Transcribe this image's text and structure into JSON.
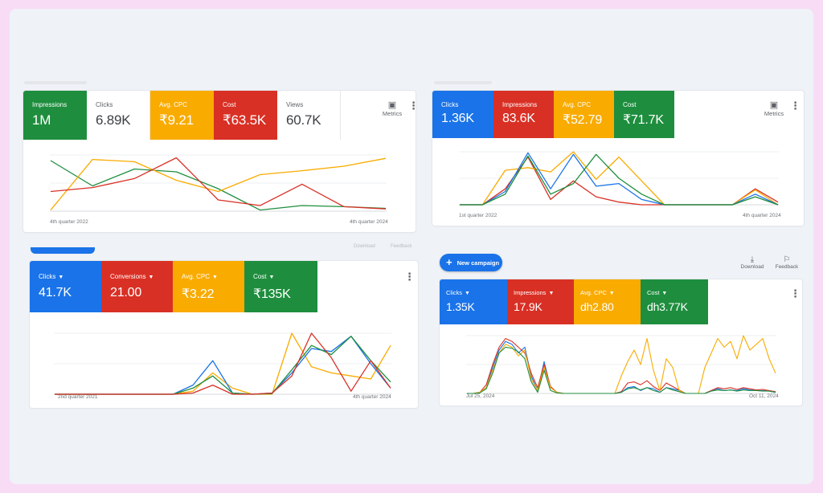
{
  "colors": {
    "blue": "#1a73e8",
    "red": "#d93025",
    "yellow": "#f9ab00",
    "green": "#1e8e3e",
    "frame": "#eff2f7",
    "outer": "#f8dcf6"
  },
  "top_bar": {
    "new_campaign_label": "New campaign",
    "new_campaign_icon": "plus-icon",
    "download_label": "Download",
    "download_icon": "download-icon",
    "feedback_label": "Feedback",
    "feedback_icon": "feedback-icon",
    "faded_download": "Download",
    "faded_feedback": "Feedback"
  },
  "cards": [
    {
      "name": "card-top-left",
      "tiles": [
        {
          "label": "Impressions",
          "value": "1M",
          "color": "green",
          "dropdown": false
        },
        {
          "label": "Clicks",
          "value": "6.89K",
          "color": "white",
          "dropdown": false
        },
        {
          "label": "Avg. CPC",
          "value": "₹9.21",
          "color": "yellow",
          "dropdown": false
        },
        {
          "label": "Cost",
          "value": "₹63.5K",
          "color": "red",
          "dropdown": false
        },
        {
          "label": "Views",
          "value": "60.7K",
          "color": "white",
          "dropdown": false
        }
      ],
      "metrics_label": "Metrics",
      "x_start": "4th quarter 2022",
      "x_end": "4th quarter 2024"
    },
    {
      "name": "card-top-right",
      "tiles": [
        {
          "label": "Clicks",
          "value": "1.36K",
          "color": "blue",
          "dropdown": false
        },
        {
          "label": "Impressions",
          "value": "83.6K",
          "color": "red",
          "dropdown": false
        },
        {
          "label": "Avg. CPC",
          "value": "₹52.79",
          "color": "yellow",
          "dropdown": false
        },
        {
          "label": "Cost",
          "value": "₹71.7K",
          "color": "green",
          "dropdown": false
        }
      ],
      "metrics_label": "Metrics",
      "x_start": "1st quarter 2022",
      "x_end": "4th quarter 2024"
    },
    {
      "name": "card-bottom-left",
      "tiles": [
        {
          "label": "Clicks",
          "value": "41.7K",
          "color": "blue",
          "dropdown": true
        },
        {
          "label": "Conversions",
          "value": "21.00",
          "color": "red",
          "dropdown": true
        },
        {
          "label": "Avg. CPC",
          "value": "₹3.22",
          "color": "yellow",
          "dropdown": true
        },
        {
          "label": "Cost",
          "value": "₹135K",
          "color": "green",
          "dropdown": true
        }
      ],
      "x_start": "2nd quarter 2021",
      "x_end": "4th quarter 2024"
    },
    {
      "name": "card-bottom-right",
      "tiles": [
        {
          "label": "Clicks",
          "value": "1.35K",
          "color": "blue",
          "dropdown": true
        },
        {
          "label": "Impressions",
          "value": "17.9K",
          "color": "red",
          "dropdown": true
        },
        {
          "label": "Avg. CPC",
          "value": "dh2.80",
          "color": "yellow",
          "dropdown": true
        },
        {
          "label": "Cost",
          "value": "dh3.77K",
          "color": "green",
          "dropdown": true
        }
      ],
      "x_start": "Jul 25, 2024",
      "x_end": "Oct 11, 2024"
    }
  ],
  "chart_data": [
    {
      "type": "line",
      "title": "",
      "x_range": [
        "4th quarter 2022",
        "4th quarter 2024"
      ],
      "series": [
        {
          "name": "Impressions",
          "color": "green",
          "values": [
            0.9,
            0.45,
            0.75,
            0.7,
            0.4,
            0.02,
            0.1,
            0.08,
            0.05
          ]
        },
        {
          "name": "Avg. CPC",
          "color": "yellow",
          "values": [
            0.02,
            0.92,
            0.88,
            0.55,
            0.35,
            0.65,
            0.72,
            0.8,
            0.94
          ]
        },
        {
          "name": "Cost",
          "color": "red",
          "values": [
            0.35,
            0.42,
            0.58,
            0.95,
            0.2,
            0.1,
            0.48,
            0.08,
            0.04
          ]
        }
      ]
    },
    {
      "type": "line",
      "title": "",
      "x_range": [
        "1st quarter 2022",
        "4th quarter 2024"
      ],
      "series": [
        {
          "name": "Impressions",
          "color": "red",
          "values": [
            0.0,
            0.0,
            0.3,
            0.9,
            0.1,
            0.45,
            0.15,
            0.05,
            0.0,
            0.0,
            0.0,
            0.0,
            0.0,
            0.3,
            0.05
          ]
        },
        {
          "name": "Avg. CPC",
          "color": "yellow",
          "values": [
            0.0,
            0.0,
            0.65,
            0.7,
            0.62,
            1.0,
            0.48,
            0.9,
            0.45,
            0.0,
            0.0,
            0.0,
            0.0,
            0.28,
            0.0
          ]
        },
        {
          "name": "Clicks",
          "color": "blue",
          "values": [
            0.0,
            0.0,
            0.25,
            0.98,
            0.3,
            0.95,
            0.35,
            0.4,
            0.1,
            0.0,
            0.0,
            0.0,
            0.0,
            0.2,
            0.0
          ]
        },
        {
          "name": "Cost",
          "color": "green",
          "values": [
            0.0,
            0.0,
            0.2,
            0.92,
            0.2,
            0.4,
            0.95,
            0.5,
            0.2,
            0.0,
            0.0,
            0.0,
            0.0,
            0.15,
            0.0
          ]
        }
      ]
    },
    {
      "type": "line",
      "title": "",
      "x_range": [
        "2nd quarter 2021",
        "4th quarter 2024"
      ],
      "series": [
        {
          "name": "Avg. CPC",
          "color": "yellow",
          "values": [
            0,
            0,
            0,
            0,
            0,
            0,
            0,
            0.05,
            0.35,
            0.1,
            0,
            0,
            1.0,
            0.45,
            0.35,
            0.3,
            0.25,
            0.8
          ]
        },
        {
          "name": "Clicks",
          "color": "blue",
          "values": [
            0,
            0,
            0,
            0,
            0,
            0,
            0,
            0.15,
            0.55,
            0.02,
            0,
            0.02,
            0.35,
            0.75,
            0.7,
            0.95,
            0.5,
            0.1
          ]
        },
        {
          "name": "Cost",
          "color": "green",
          "values": [
            0,
            0,
            0,
            0,
            0,
            0,
            0,
            0.1,
            0.3,
            0.02,
            0,
            0.01,
            0.4,
            0.8,
            0.65,
            0.95,
            0.55,
            0.2
          ]
        },
        {
          "name": "Conversions",
          "color": "red",
          "values": [
            0,
            0,
            0,
            0,
            0,
            0,
            0,
            0.02,
            0.15,
            0.0,
            0,
            0.02,
            0.3,
            1.0,
            0.6,
            0.05,
            0.55,
            0.1
          ]
        }
      ]
    },
    {
      "type": "line",
      "title": "",
      "x_range": [
        "Jul 25, 2024",
        "Oct 11, 2024"
      ],
      "series": [
        {
          "name": "Clicks",
          "color": "blue",
          "values": [
            0,
            0,
            0.02,
            0.1,
            0.45,
            0.75,
            0.9,
            0.85,
            0.7,
            0.8,
            0.3,
            0.05,
            0.55,
            0.1,
            0.02,
            0,
            0,
            0,
            0,
            0,
            0,
            0,
            0,
            0,
            0.02,
            0.1,
            0.12,
            0.05,
            0.1,
            0.08,
            0.02,
            0.1,
            0.08,
            0.05,
            0,
            0,
            0,
            0,
            0.05,
            0.08,
            0.05,
            0.06,
            0.05,
            0.08,
            0.06,
            0.05,
            0.05,
            0.04,
            0.02
          ]
        },
        {
          "name": "Impressions",
          "color": "red",
          "values": [
            0,
            0,
            0.02,
            0.15,
            0.5,
            0.8,
            0.95,
            0.9,
            0.8,
            0.7,
            0.35,
            0.1,
            0.5,
            0.12,
            0.02,
            0,
            0,
            0,
            0,
            0,
            0,
            0,
            0,
            0,
            0.03,
            0.18,
            0.2,
            0.15,
            0.22,
            0.12,
            0.05,
            0.18,
            0.12,
            0.06,
            0,
            0,
            0,
            0,
            0.05,
            0.1,
            0.08,
            0.1,
            0.07,
            0.1,
            0.08,
            0.06,
            0.07,
            0.05,
            0.03
          ]
        },
        {
          "name": "Avg. CPC",
          "color": "yellow",
          "values": [
            0,
            0,
            0.02,
            0.1,
            0.4,
            0.7,
            0.85,
            0.8,
            0.65,
            0.75,
            0.25,
            0.05,
            0.45,
            0.1,
            0.02,
            0,
            0,
            0,
            0,
            0,
            0,
            0,
            0,
            0,
            0.3,
            0.55,
            0.75,
            0.5,
            0.95,
            0.4,
            0.05,
            0.6,
            0.45,
            0.05,
            0,
            0,
            0,
            0.45,
            0.7,
            0.95,
            0.8,
            0.9,
            0.6,
            1.0,
            0.75,
            0.85,
            0.95,
            0.6,
            0.35
          ]
        },
        {
          "name": "Cost",
          "color": "green",
          "values": [
            0,
            0,
            0.01,
            0.08,
            0.35,
            0.7,
            0.8,
            0.78,
            0.72,
            0.6,
            0.2,
            0.02,
            0.4,
            0.05,
            0.01,
            0,
            0,
            0,
            0,
            0,
            0,
            0,
            0,
            0,
            0.02,
            0.08,
            0.1,
            0.06,
            0.1,
            0.05,
            0.02,
            0.1,
            0.06,
            0.03,
            0,
            0,
            0,
            0,
            0.04,
            0.06,
            0.05,
            0.06,
            0.04,
            0.06,
            0.05,
            0.05,
            0.04,
            0.04,
            0.02
          ]
        }
      ]
    }
  ]
}
